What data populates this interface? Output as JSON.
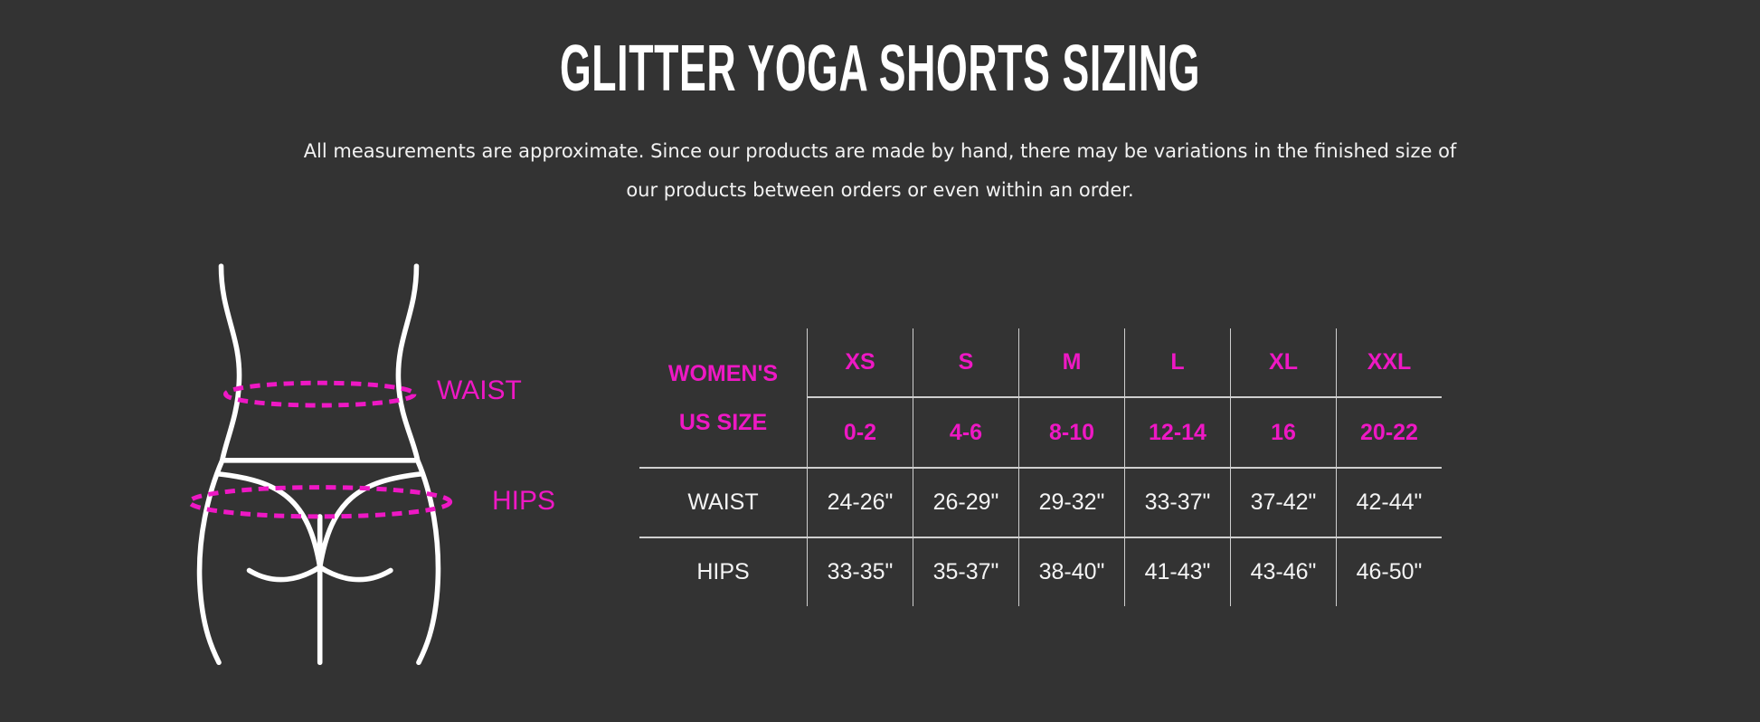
{
  "title": "GLITTER YOGA SHORTS SIZING",
  "subtitle": {
    "line1": "All measurements are approximate. Since our products are made by hand, there may be variations in the finished size of",
    "line2": "our products between orders or even within an order."
  },
  "figure": {
    "waist_label": "WAIST",
    "hips_label": "HIPS"
  },
  "colors": {
    "background": "#333333",
    "accent": "#ee18c4",
    "text": "#ffffff"
  },
  "table": {
    "header_label_line1": "WOMEN'S",
    "header_label_line2": "US SIZE",
    "sizes": [
      "XS",
      "S",
      "M",
      "L",
      "XL",
      "XXL"
    ],
    "us_sizes": [
      "0-2",
      "4-6",
      "8-10",
      "12-14",
      "16",
      "20-22"
    ],
    "rows": [
      {
        "label": "WAIST",
        "values": [
          "24-26\"",
          "26-29\"",
          "29-32\"",
          "33-37\"",
          "37-42\"",
          "42-44\""
        ]
      },
      {
        "label": "HIPS",
        "values": [
          "33-35\"",
          "35-37\"",
          "38-40\"",
          "41-43\"",
          "43-46\"",
          "46-50\""
        ]
      }
    ]
  }
}
